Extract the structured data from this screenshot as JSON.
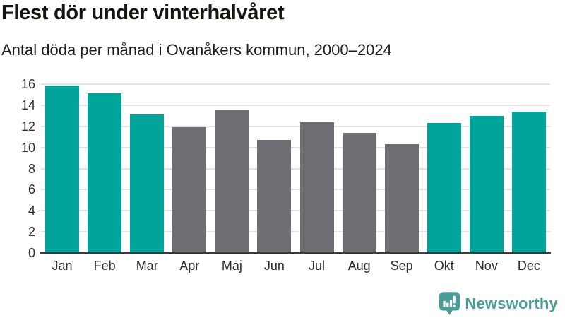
{
  "chart_data": {
    "type": "bar",
    "title": "Flest dör under vinterhalvåret",
    "subtitle": "Antal döda per månad i Ovanåkers kommun, 2000–2024",
    "categories": [
      "Jan",
      "Feb",
      "Mar",
      "Apr",
      "Maj",
      "Jun",
      "Jul",
      "Aug",
      "Sep",
      "Okt",
      "Nov",
      "Dec"
    ],
    "values": [
      15.9,
      15.1,
      13.1,
      11.9,
      13.5,
      10.7,
      12.4,
      11.4,
      10.3,
      12.3,
      13.0,
      13.4
    ],
    "highlighted_winter_months": [
      true,
      true,
      true,
      false,
      false,
      false,
      false,
      false,
      false,
      true,
      true,
      true
    ],
    "bar_color_winter": "#00A49B",
    "bar_color_summer": "#6D6D72",
    "xlabel": "",
    "ylabel": "",
    "ylim": [
      0,
      16
    ],
    "yticks": [
      0,
      2,
      4,
      6,
      8,
      10,
      12,
      14,
      16
    ],
    "grid": true,
    "legend": "none"
  },
  "colors": {
    "grid_line": "#E3E3E3",
    "axis_line": "#3A3A3A",
    "text": "#1D1D1B"
  },
  "footer": {
    "brand": "Newsworthy",
    "brand_color": "#4A9D96",
    "logo_icon": "newsworthy-speech-bubble-bar-chart-icon"
  }
}
